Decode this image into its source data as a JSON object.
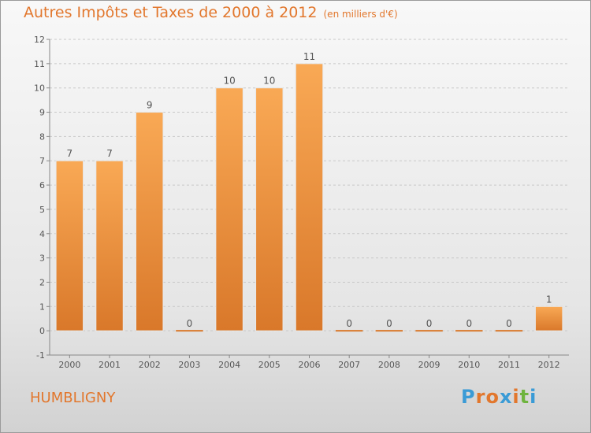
{
  "title": "Autres Impôts et Taxes de 2000 à 2012",
  "subtitle": "(en milliers d'€)",
  "commune": "HUMBLIGNY",
  "logo": {
    "letters": [
      "P",
      "r",
      "o",
      "x",
      "i",
      "t",
      "i"
    ],
    "colors": [
      "#3a9bd6",
      "#e2772d",
      "#e2772d",
      "#3a9bd6",
      "#e2772d",
      "#6fb43f",
      "#3a9bd6"
    ]
  },
  "colors": {
    "bar_light": "#f9a955",
    "bar_dark": "#d9782a",
    "accent": "#e2772d"
  },
  "chart_data": {
    "type": "bar",
    "title": "Autres Impôts et Taxes de 2000 à 2012",
    "subtitle": "(en milliers d'€)",
    "categories": [
      "2000",
      "2001",
      "2002",
      "2003",
      "2004",
      "2005",
      "2006",
      "2007",
      "2008",
      "2009",
      "2010",
      "2011",
      "2012"
    ],
    "values": [
      7,
      7,
      9,
      0,
      10,
      10,
      11,
      0,
      0,
      0,
      0,
      0,
      1
    ],
    "ylim": [
      -1,
      12
    ],
    "yticks": [
      "-1",
      "0",
      "1",
      "2",
      "3",
      "4",
      "5",
      "6",
      "7",
      "8",
      "9",
      "10",
      "11",
      "12"
    ],
    "grid": true
  }
}
